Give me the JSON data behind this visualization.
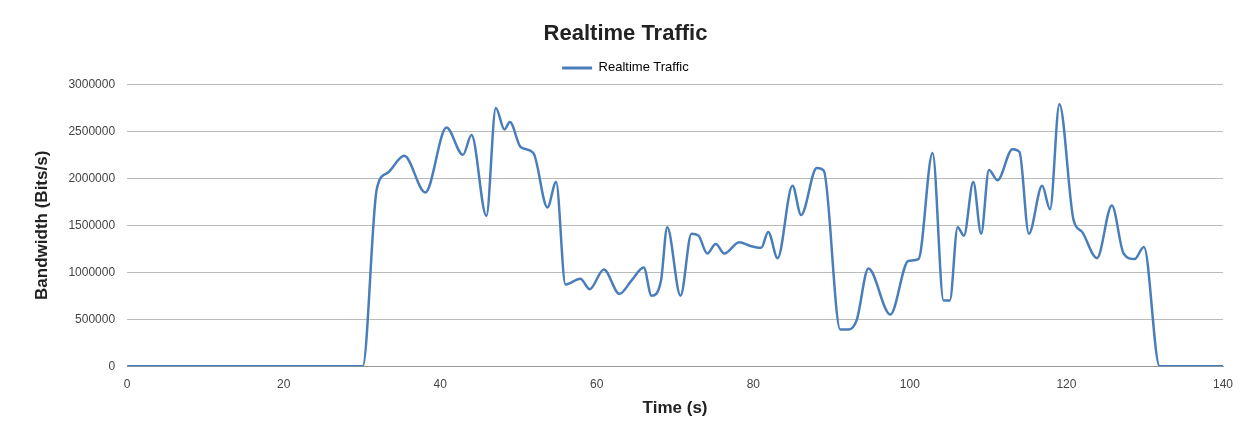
{
  "chart_data": {
    "type": "line",
    "title": "Realtime Traffic",
    "xlabel": "Time (s)",
    "ylabel": "Bandwidth (Bits/s)",
    "xlim": [
      0,
      140
    ],
    "xticks": [
      0,
      20,
      40,
      60,
      80,
      100,
      120,
      140
    ],
    "ylim": [
      0,
      3000000
    ],
    "yticks": [
      0,
      500000,
      1000000,
      1500000,
      2000000,
      2500000,
      3000000
    ],
    "grid": "y",
    "legend": "top",
    "marker": "none",
    "line_style": "solid",
    "series": [
      {
        "name": "Realtime Traffic",
        "color": "#4a7ebb",
        "x": [
          0,
          30.1,
          31.9,
          33.3,
          35.4,
          38.1,
          40.8,
          42.9,
          44.0,
          45.9,
          47.1,
          48.2,
          48.9,
          50.3,
          51.9,
          53.7,
          54.8,
          56.0,
          57.9,
          59.1,
          60.9,
          62.9,
          64.5,
          66.0,
          67.0,
          68.2,
          69.0,
          70.7,
          72.1,
          73.0,
          74.1,
          75.2,
          76.3,
          78.2,
          79.6,
          81.0,
          81.9,
          83.1,
          85.0,
          86.1,
          88.1,
          89.0,
          91.1,
          92.2,
          93.2,
          94.7,
          97.5,
          99.8,
          101.1,
          102.9,
          104.3,
          105.1,
          106.1,
          106.9,
          108.1,
          109.1,
          110.1,
          111.2,
          113.1,
          114.0,
          115.2,
          116.9,
          117.9,
          119.1,
          120.9,
          122.0,
          123.9,
          125.8,
          127.3,
          128.7,
          129.9,
          131.9,
          140
        ],
        "values": [
          0,
          0,
          1890000,
          2060000,
          2240000,
          1850000,
          2540000,
          2250000,
          2460000,
          1600000,
          2750000,
          2520000,
          2600000,
          2330000,
          2270000,
          1690000,
          1960000,
          870000,
          930000,
          820000,
          1030000,
          770000,
          920000,
          1050000,
          750000,
          910000,
          1480000,
          750000,
          1410000,
          1390000,
          1200000,
          1300000,
          1200000,
          1320000,
          1280000,
          1260000,
          1430000,
          1150000,
          1920000,
          1610000,
          2110000,
          2080000,
          390000,
          390000,
          490000,
          1040000,
          550000,
          1120000,
          1140000,
          2270000,
          700000,
          700000,
          1480000,
          1390000,
          1960000,
          1410000,
          2090000,
          1980000,
          2310000,
          2280000,
          1410000,
          1920000,
          1670000,
          2790000,
          1560000,
          1430000,
          1150000,
          1710000,
          1200000,
          1140000,
          1270000,
          0,
          0
        ]
      }
    ]
  }
}
